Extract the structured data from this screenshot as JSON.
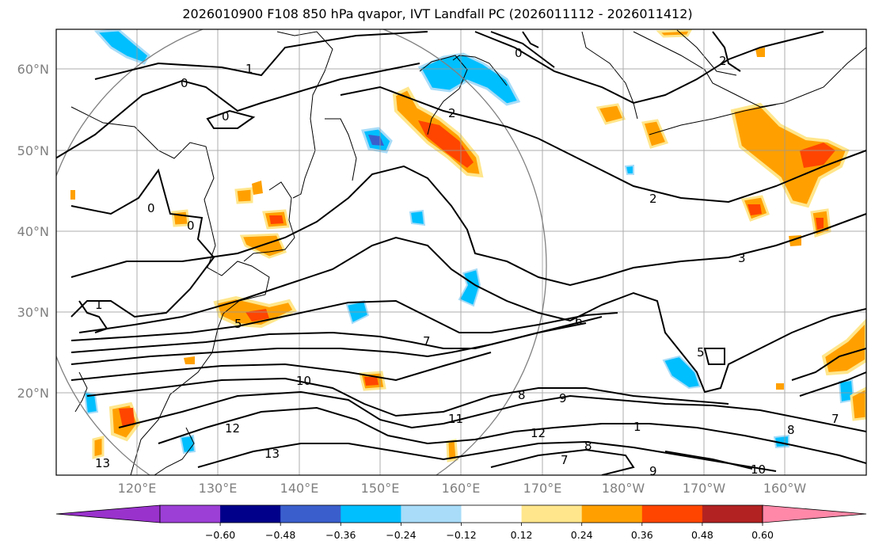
{
  "title": "2026010900 F108 850 hPa qvapor, IVT Landfall PC (2026011112 - 2026011412)",
  "lat_ticks": [
    "60°N",
    "50°N",
    "40°N",
    "30°N",
    "20°N"
  ],
  "lon_ticks": [
    "120°E",
    "130°E",
    "140°E",
    "150°E",
    "160°E",
    "170°E",
    "180°W",
    "170°W",
    "160°W"
  ],
  "colorbar": {
    "labels": [
      "−0.60",
      "−0.48",
      "−0.36",
      "−0.24",
      "−0.12",
      "0.12",
      "0.24",
      "0.36",
      "0.48",
      "0.60"
    ],
    "colors": [
      "#9c3fd6",
      "#00008b",
      "#3a5fcd",
      "#00bfff",
      "#a8dcf8",
      "#ffffff",
      "#ffe68c",
      "#ffa000",
      "#ff4500",
      "#b22222"
    ],
    "under_color": "#9932cc",
    "over_color": "#ff88a8"
  },
  "contour_labels": [
    "1",
    "0",
    "0",
    "0",
    "0",
    "0",
    "2",
    "2",
    "3",
    "5",
    "6",
    "7",
    "10",
    "12",
    "13",
    "13",
    "9",
    "8",
    "11",
    "12",
    "8",
    "7",
    "9",
    "10",
    "8",
    "7",
    "5",
    "1",
    "2",
    "1"
  ]
}
